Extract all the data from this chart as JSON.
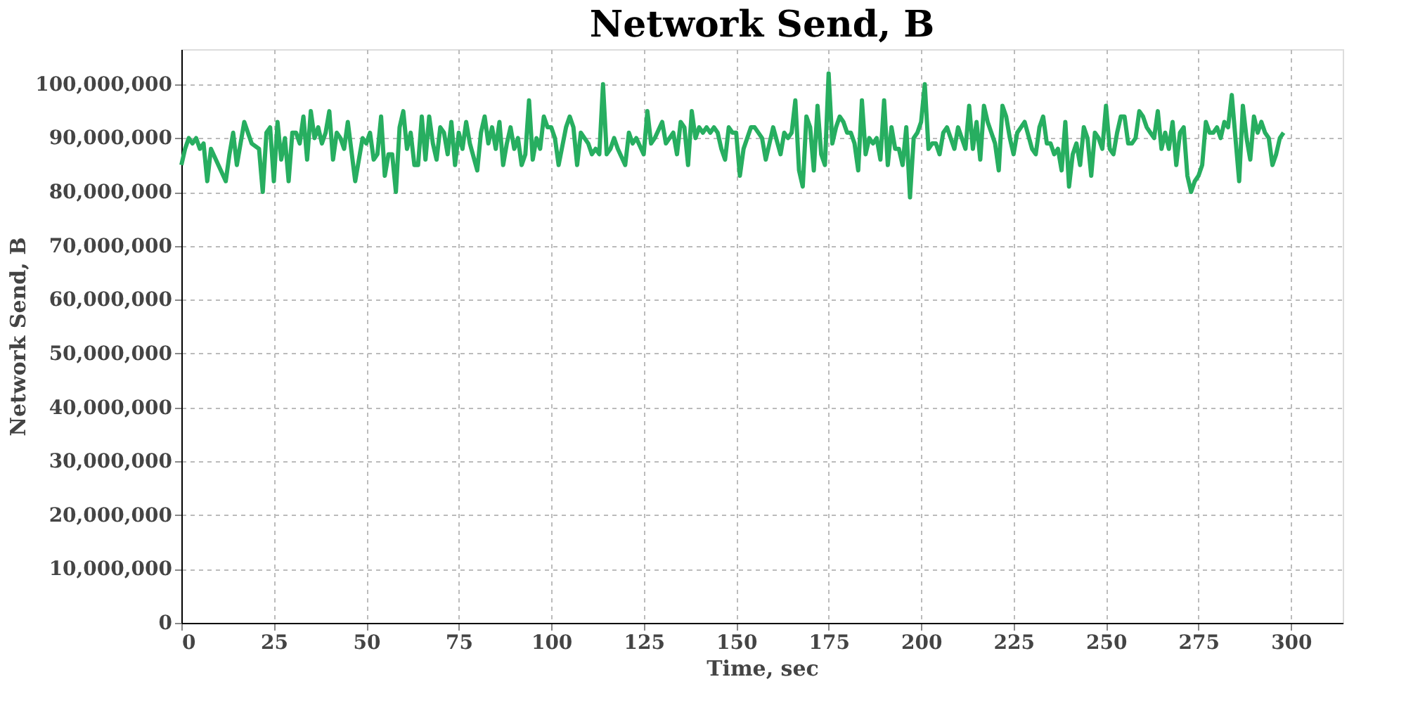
{
  "chart_data": {
    "type": "line",
    "title": "Network Send, B",
    "xlabel": "Time, sec",
    "ylabel": "Network Send, B",
    "x": [
      0,
      1,
      2,
      3,
      4,
      5,
      6,
      7,
      8,
      10,
      12,
      13,
      14,
      15,
      17,
      19,
      21,
      22,
      23,
      24,
      25,
      26,
      27,
      28,
      29,
      30,
      31,
      32,
      33,
      34,
      35,
      36,
      37,
      38,
      39,
      40,
      41,
      42,
      43,
      44,
      45,
      47,
      48,
      49,
      50,
      51,
      52,
      53,
      54,
      55,
      56,
      57,
      58,
      59,
      60,
      61,
      62,
      63,
      64,
      65,
      66,
      67,
      68,
      69,
      70,
      71,
      72,
      73,
      74,
      75,
      76,
      77,
      78,
      80,
      81,
      82,
      83,
      84,
      85,
      86,
      87,
      88,
      89,
      90,
      91,
      92,
      93,
      94,
      95,
      96,
      97,
      98,
      99,
      100,
      101,
      102,
      104,
      105,
      106,
      107,
      108,
      110,
      111,
      112,
      113,
      114,
      115,
      116,
      117,
      118,
      120,
      121,
      122,
      123,
      125,
      126,
      127,
      128,
      130,
      131,
      133,
      134,
      135,
      136,
      137,
      138,
      139,
      140,
      141,
      142,
      143,
      144,
      145,
      146,
      147,
      148,
      149,
      150,
      151,
      152,
      154,
      155,
      157,
      158,
      160,
      162,
      163,
      164,
      165,
      166,
      167,
      168,
      169,
      170,
      171,
      172,
      173,
      174,
      175,
      176,
      177,
      178,
      179,
      180,
      181,
      182,
      183,
      184,
      185,
      186,
      187,
      188,
      189,
      190,
      191,
      192,
      193,
      194,
      195,
      196,
      197,
      198,
      199,
      200,
      201,
      202,
      203,
      204,
      205,
      206,
      207,
      209,
      210,
      212,
      213,
      214,
      215,
      216,
      217,
      218,
      220,
      221,
      222,
      223,
      224,
      225,
      226,
      227,
      228,
      230,
      231,
      232,
      233,
      234,
      235,
      236,
      237,
      238,
      239,
      240,
      241,
      242,
      243,
      244,
      245,
      246,
      247,
      248,
      249,
      250,
      251,
      252,
      253,
      254,
      255,
      256,
      257,
      258,
      259,
      260,
      261,
      262,
      263,
      264,
      265,
      266,
      267,
      268,
      269,
      270,
      271,
      272,
      273,
      274,
      275,
      276,
      277,
      278,
      279,
      280,
      281,
      282,
      283,
      284,
      285,
      286,
      287,
      288,
      289,
      290,
      291,
      292,
      293,
      294,
      295,
      296,
      297,
      298
    ],
    "series": [
      {
        "color": "#27ae60",
        "values": [
          85000000,
          88000000,
          90000000,
          89000000,
          90000000,
          88000000,
          89000000,
          82000000,
          88000000,
          85000000,
          82000000,
          87000000,
          91000000,
          85000000,
          93000000,
          89000000,
          88000000,
          80000000,
          91000000,
          92000000,
          82000000,
          93000000,
          86000000,
          90000000,
          82000000,
          91000000,
          91000000,
          89000000,
          94000000,
          86000000,
          95000000,
          90000000,
          92000000,
          89000000,
          91000000,
          95000000,
          86000000,
          91000000,
          90000000,
          88000000,
          93000000,
          82000000,
          86000000,
          90000000,
          89000000,
          91000000,
          86000000,
          87000000,
          94000000,
          83000000,
          87000000,
          87000000,
          80000000,
          92000000,
          95000000,
          88000000,
          91000000,
          85000000,
          85000000,
          94000000,
          86000000,
          94000000,
          89000000,
          86000000,
          92000000,
          91000000,
          87000000,
          93000000,
          85000000,
          91000000,
          88000000,
          93000000,
          89000000,
          84000000,
          91000000,
          94000000,
          89000000,
          92000000,
          88000000,
          93000000,
          85000000,
          89000000,
          92000000,
          88000000,
          90000000,
          85000000,
          87000000,
          97000000,
          86000000,
          90000000,
          88000000,
          94000000,
          92000000,
          92000000,
          90000000,
          85000000,
          92000000,
          94000000,
          92000000,
          85000000,
          91000000,
          89000000,
          87000000,
          88000000,
          87000000,
          100000000,
          87000000,
          88000000,
          90000000,
          88000000,
          85000000,
          91000000,
          89000000,
          90000000,
          87000000,
          95000000,
          89000000,
          90000000,
          93000000,
          89000000,
          91000000,
          87000000,
          93000000,
          92000000,
          85000000,
          95000000,
          90000000,
          92000000,
          91000000,
          92000000,
          91000000,
          92000000,
          91000000,
          88000000,
          86000000,
          92000000,
          91000000,
          91000000,
          83000000,
          88000000,
          92000000,
          92000000,
          90000000,
          86000000,
          92000000,
          87000000,
          91000000,
          90000000,
          91000000,
          97000000,
          84000000,
          81000000,
          94000000,
          92000000,
          84000000,
          96000000,
          87000000,
          85000000,
          102000000,
          89000000,
          92000000,
          94000000,
          93000000,
          91000000,
          91000000,
          89000000,
          84000000,
          97000000,
          87000000,
          90000000,
          89000000,
          90000000,
          86000000,
          97000000,
          85000000,
          92000000,
          88000000,
          88000000,
          85000000,
          92000000,
          79000000,
          90000000,
          91000000,
          93000000,
          100000000,
          88000000,
          89000000,
          89000000,
          87000000,
          91000000,
          92000000,
          88000000,
          92000000,
          88000000,
          96000000,
          88000000,
          93000000,
          86000000,
          96000000,
          93000000,
          89000000,
          84000000,
          96000000,
          94000000,
          90000000,
          87000000,
          91000000,
          92000000,
          93000000,
          88000000,
          87000000,
          92000000,
          94000000,
          89000000,
          89000000,
          87000000,
          88000000,
          84000000,
          93000000,
          81000000,
          87000000,
          89000000,
          85000000,
          92000000,
          90000000,
          83000000,
          91000000,
          90000000,
          88000000,
          96000000,
          88000000,
          87000000,
          91000000,
          94000000,
          94000000,
          89000000,
          89000000,
          90000000,
          95000000,
          94000000,
          92000000,
          91000000,
          90000000,
          95000000,
          88000000,
          91000000,
          88000000,
          93000000,
          85000000,
          91000000,
          92000000,
          83000000,
          80000000,
          82000000,
          83000000,
          85000000,
          93000000,
          91000000,
          91000000,
          92000000,
          90000000,
          93000000,
          92000000,
          98000000,
          90000000,
          82000000,
          96000000,
          90000000,
          86000000,
          94000000,
          91000000,
          93000000,
          91000000,
          90000000,
          85000000,
          87000000,
          90000000,
          91000000
        ]
      }
    ],
    "xlim": [
      0,
      314
    ],
    "ylim": [
      0,
      106500000
    ],
    "xticks": [
      0,
      25,
      50,
      75,
      100,
      125,
      150,
      175,
      200,
      225,
      250,
      275,
      300
    ],
    "yticks": [
      0,
      {
        "value": 10000000,
        "label": "10,000,000"
      },
      {
        "value": 20000000,
        "label": "20,000,000"
      },
      {
        "value": 30000000,
        "label": "30,000,000"
      },
      {
        "value": 40000000,
        "label": "40,000,000"
      },
      {
        "value": 50000000,
        "label": "50,000,000"
      },
      {
        "value": 60000000,
        "label": "60,000,000"
      },
      {
        "value": 70000000,
        "label": "70,000,000"
      },
      {
        "value": 80000000,
        "label": "80,000,000"
      },
      {
        "value": 90000000,
        "label": "90,000,000"
      },
      {
        "value": 100000000,
        "label": "100,000,000"
      }
    ],
    "grid": true,
    "legend": false,
    "line_style": "solid",
    "marker": "none"
  }
}
